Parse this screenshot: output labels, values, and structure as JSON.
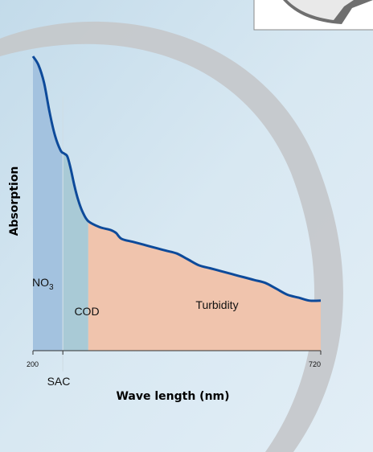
{
  "colors": {
    "background": "#cfe3ef",
    "swoosh": "#c5c8cb",
    "curve": "#0d4a9a",
    "no3_region": "#a3c2df",
    "cod_region": "#a9cad6",
    "turbidity_region": "#f0c4ad",
    "axis": "#333333"
  },
  "chart_data": {
    "type": "area",
    "xlabel": "Wave length (nm)",
    "ylabel": "Absorption",
    "xlim": [
      200,
      720
    ],
    "x_ticks": [
      "200",
      "720"
    ],
    "marker": {
      "label": "SAC",
      "x": 254
    },
    "regions": [
      {
        "name": "NO3",
        "label_main": "NO",
        "label_sub": "3",
        "x_start": 200,
        "x_end": 254,
        "color": "#a3c2df"
      },
      {
        "name": "COD",
        "label_main": "COD",
        "label_sub": "",
        "x_start": 254,
        "x_end": 300,
        "color": "#a9cad6"
      },
      {
        "name": "Turbidity",
        "label_main": "Turbidity",
        "label_sub": "",
        "x_start": 300,
        "x_end": 720,
        "color": "#f0c4ad"
      }
    ],
    "curve": {
      "x": [
        200,
        210,
        220,
        230,
        240,
        250,
        256,
        262,
        268,
        275,
        282,
        290,
        300,
        320,
        340,
        350,
        360,
        380,
        400,
        420,
        440,
        460,
        480,
        500,
        520,
        540,
        560,
        580,
        600,
        620,
        640,
        660,
        680,
        700,
        720
      ],
      "y": [
        1.0,
        0.97,
        0.91,
        0.81,
        0.73,
        0.68,
        0.67,
        0.66,
        0.62,
        0.56,
        0.51,
        0.47,
        0.44,
        0.42,
        0.41,
        0.4,
        0.38,
        0.37,
        0.36,
        0.35,
        0.34,
        0.33,
        0.31,
        0.29,
        0.28,
        0.27,
        0.26,
        0.25,
        0.24,
        0.23,
        0.21,
        0.19,
        0.18,
        0.17,
        0.17
      ]
    }
  }
}
